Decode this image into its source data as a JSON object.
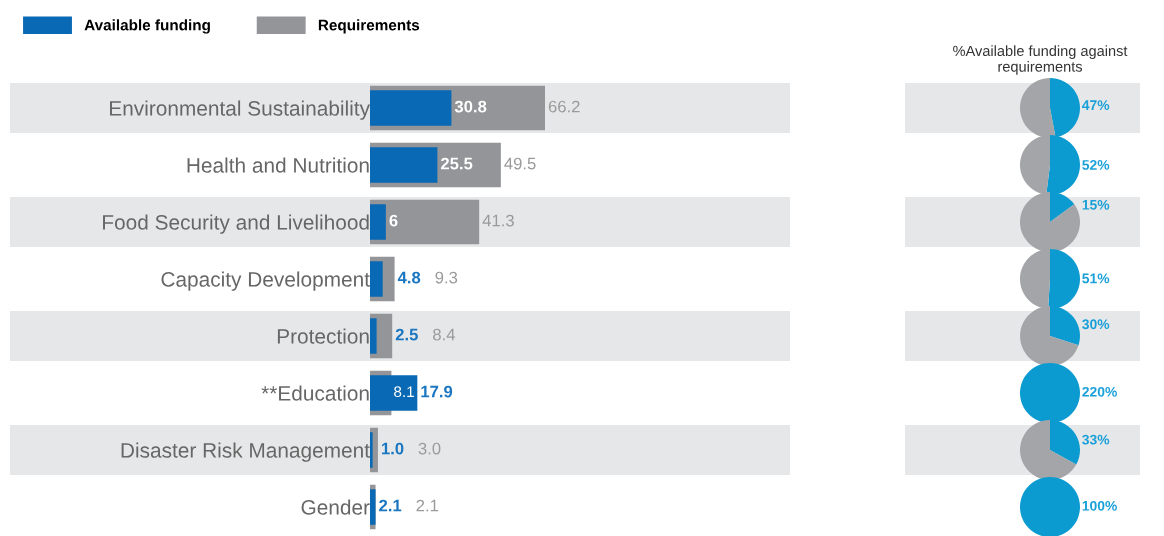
{
  "chart_data": [
    {
      "type": "bar",
      "orientation": "horizontal",
      "legend": "top left",
      "tick_labels": "y",
      "categories": [
        "Environmental Sustainability",
        "Health and Nutrition",
        "Food Security and Livelihood",
        "Capacity Development",
        "Protection",
        "**Education",
        "Disaster Risk Management",
        "Gender"
      ],
      "series": [
        {
          "name": "Requirements",
          "color": "#939598",
          "values": [
            66.2,
            49.5,
            41.3,
            9.3,
            8.4,
            8.1,
            3.0,
            2.1
          ],
          "value_labels": [
            "66.2",
            "49.5",
            "41.3",
            "9.3",
            "8.4",
            "8.1",
            "3.0",
            "2.1"
          ]
        },
        {
          "name": "Available funding",
          "color": "#0a69b4",
          "values": [
            30.8,
            25.5,
            6,
            4.8,
            2.5,
            17.9,
            1.0,
            2.1
          ],
          "value_labels": [
            "30.8",
            "25.5",
            "6",
            "4.8",
            "2.5",
            "17.9",
            "1.0",
            "2.1"
          ]
        }
      ]
    },
    {
      "type": "pie",
      "title": "%Available funding against requirements",
      "categories": [
        null,
        null
      ],
      "values": [
        47,
        53
      ],
      "colors": [
        "#0b9bd0",
        "#a3a5a8"
      ],
      "value_labels": [
        "47%",
        null
      ]
    },
    {
      "type": "pie",
      "categories": [
        null,
        null
      ],
      "values": [
        52,
        48
      ],
      "colors": [
        "#0b9bd0",
        "#a3a5a8"
      ],
      "value_labels": [
        "52%",
        null
      ]
    },
    {
      "type": "pie",
      "categories": [
        null,
        null
      ],
      "values": [
        15,
        85
      ],
      "colors": [
        "#0b9bd0",
        "#a3a5a8"
      ],
      "value_labels": [
        "15%",
        null
      ]
    },
    {
      "type": "pie",
      "categories": [
        null,
        null
      ],
      "values": [
        51,
        49
      ],
      "colors": [
        "#0b9bd0",
        "#a3a5a8"
      ],
      "value_labels": [
        "51%",
        null
      ]
    },
    {
      "type": "pie",
      "categories": [
        null,
        null
      ],
      "values": [
        30,
        70
      ],
      "colors": [
        "#0b9bd0",
        "#a3a5a8"
      ],
      "value_labels": [
        "30%",
        null
      ]
    },
    {
      "type": "pie",
      "categories": [
        null,
        null
      ],
      "values": [
        220,
        0
      ],
      "colors": [
        "#0b9bd0",
        "#a3a5a8"
      ],
      "value_labels": [
        "220%",
        null
      ]
    },
    {
      "type": "pie",
      "categories": [
        null,
        null
      ],
      "values": [
        33,
        67
      ],
      "colors": [
        "#0b9bd0",
        "#a3a5a8"
      ],
      "value_labels": [
        "33%",
        null
      ]
    },
    {
      "type": "pie",
      "categories": [
        null,
        null
      ],
      "values": [
        100,
        0
      ],
      "colors": [
        "#0b9bd0",
        "#a3a5a8"
      ],
      "value_labels": [
        "100%",
        null
      ]
    }
  ]
}
